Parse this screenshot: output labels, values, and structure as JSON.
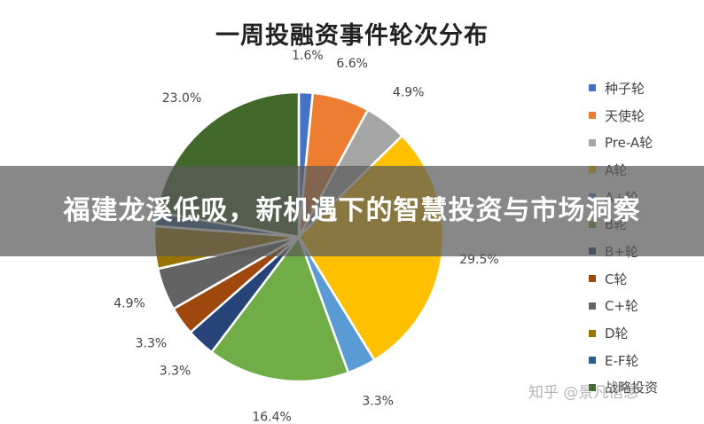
{
  "chart_data": {
    "type": "pie",
    "title": "一周投融资事件轮次分布",
    "legend_position": "right",
    "series": [
      {
        "name": "种子轮",
        "value": 1.6,
        "label": "1.6%",
        "color": "#4472C4"
      },
      {
        "name": "天使轮",
        "value": 6.6,
        "label": "6.6%",
        "color": "#ED7D31"
      },
      {
        "name": "Pre-A轮",
        "value": 4.9,
        "label": "4.9%",
        "color": "#A5A5A5"
      },
      {
        "name": "A轮",
        "value": 29.5,
        "label": "29.5%",
        "color": "#FFC000"
      },
      {
        "name": "A+轮",
        "value": 3.3,
        "label": "3.3%",
        "color": "#5B9BD5"
      },
      {
        "name": "B轮",
        "value": 16.4,
        "label": "16.4%",
        "color": "#70AD47"
      },
      {
        "name": "B+轮",
        "value": 3.3,
        "label": "3.3%",
        "color": "#264478"
      },
      {
        "name": "C轮",
        "value": 3.3,
        "label": "3.3%",
        "color": "#9E480E"
      },
      {
        "name": "C+轮",
        "value": 4.9,
        "label": "4.9%",
        "color": "#636363"
      },
      {
        "name": "D轮",
        "value": 4.9,
        "label": "",
        "color": "#997300"
      },
      {
        "name": "E-F轮",
        "value": 1.6,
        "label": "",
        "color": "#255E91"
      },
      {
        "name": "战略投资",
        "value": 23.0,
        "label": "23.0%",
        "color": "#43682B"
      }
    ]
  },
  "overlay": {
    "banner_text": "福建龙溪低吸，新机遇下的智慧投资与市场洞察",
    "watermark": "知乎 @景凡信息"
  }
}
